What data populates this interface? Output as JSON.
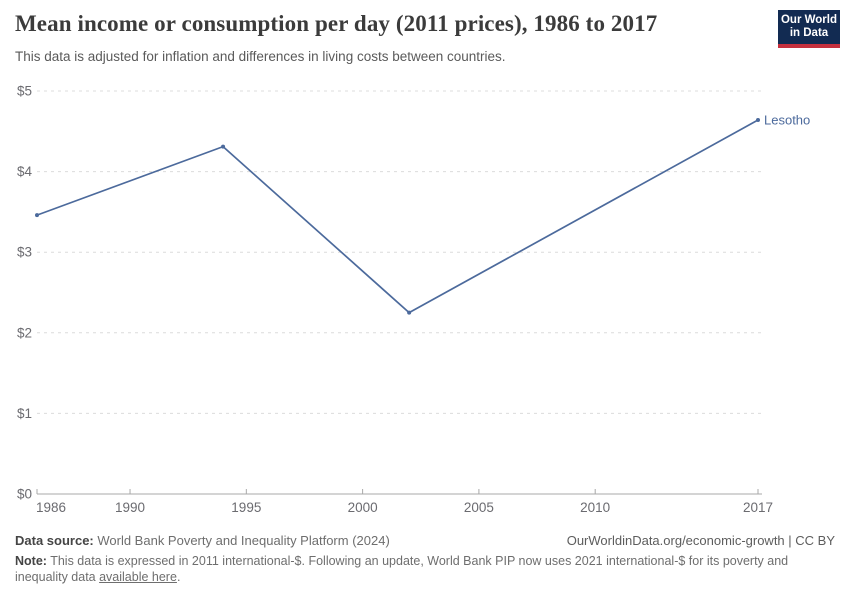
{
  "header": {
    "title": "Mean income or consumption per day (2011 prices), 1986 to 2017",
    "subtitle": "This data is adjusted for inflation and differences in living costs between countries.",
    "logo": {
      "line1": "Our World",
      "line2": "in Data"
    }
  },
  "chart_data": {
    "type": "line",
    "title": "Mean income or consumption per day (2011 prices), 1986 to 2017",
    "x": [
      1986,
      1994,
      2002,
      2017
    ],
    "series": [
      {
        "name": "Lesotho",
        "values": [
          3.46,
          4.31,
          2.25,
          4.64
        ]
      }
    ],
    "xlabel": "",
    "ylabel": "",
    "xlim": [
      1986,
      2017
    ],
    "ylim": [
      0,
      5
    ],
    "x_ticks": [
      {
        "value": 1986,
        "label": "1986"
      },
      {
        "value": 1990,
        "label": "1990"
      },
      {
        "value": 1995,
        "label": "1995"
      },
      {
        "value": 2000,
        "label": "2000"
      },
      {
        "value": 2005,
        "label": "2005"
      },
      {
        "value": 2010,
        "label": "2010"
      },
      {
        "value": 2017,
        "label": "2017"
      }
    ],
    "y_ticks": [
      {
        "value": 0,
        "label": "$0"
      },
      {
        "value": 1,
        "label": "$1"
      },
      {
        "value": 2,
        "label": "$2"
      },
      {
        "value": 3,
        "label": "$3"
      },
      {
        "value": 4,
        "label": "$4"
      },
      {
        "value": 5,
        "label": "$5"
      }
    ],
    "grid": "horizontal-dashed",
    "legend_position": "end-of-line-label"
  },
  "colors": {
    "line": "#4c6a9c",
    "grid": "#dcdcdc",
    "axis": "#a8a8a8",
    "tick_label": "#6b6b70",
    "logo_bg": "#122b52",
    "logo_accent": "#c5303e"
  },
  "footer": {
    "datasource_label": "Data source:",
    "datasource_value": " World Bank Poverty and Inequality Platform (2024)",
    "attribution": "OurWorldinData.org/economic-growth | CC BY",
    "note_label": "Note:",
    "note_before_link": " This data is expressed in 2011 international-$. Following an update, World Bank PIP now uses 2021 international-$ for its poverty and inequality data ",
    "note_link": "available here",
    "note_after_link": "."
  }
}
